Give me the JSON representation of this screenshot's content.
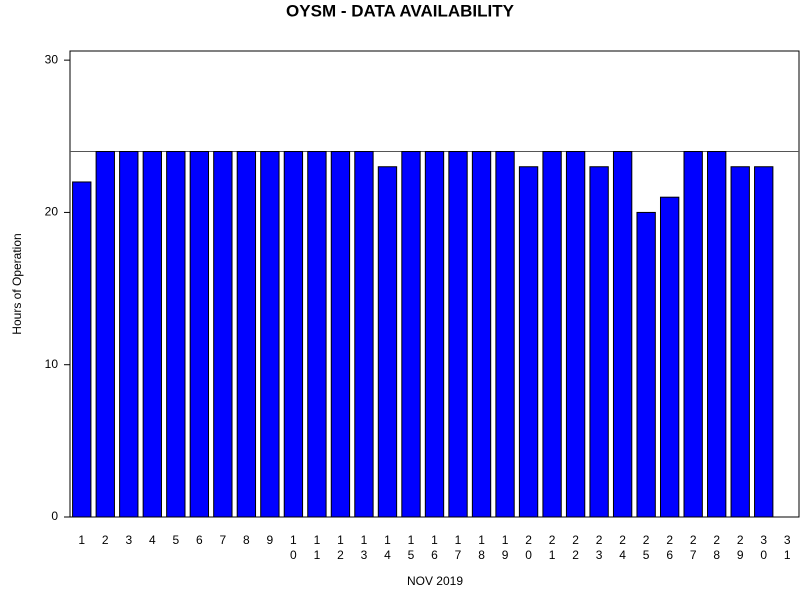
{
  "chart_data": {
    "type": "bar",
    "title": "OYSM - DATA AVAILABILITY",
    "x_label": "NOV 2019",
    "y_label": "Hours of Operation",
    "categories": [
      "1",
      "2",
      "3",
      "4",
      "5",
      "6",
      "7",
      "8",
      "9",
      "10",
      "11",
      "12",
      "13",
      "14",
      "15",
      "16",
      "17",
      "18",
      "19",
      "20",
      "21",
      "22",
      "23",
      "24",
      "25",
      "26",
      "27",
      "28",
      "29",
      "30",
      "31"
    ],
    "values": [
      22,
      24,
      24,
      24,
      24,
      24,
      24,
      24,
      24,
      24,
      24,
      24,
      24,
      23,
      24,
      24,
      24,
      24,
      24,
      23,
      24,
      24,
      23,
      24,
      20,
      21,
      24,
      24,
      23,
      23,
      null
    ],
    "color": "#0000ff",
    "reference_line": 24,
    "ylim": [
      0,
      30.6
    ],
    "yticks": [
      0,
      10,
      20,
      30
    ]
  }
}
